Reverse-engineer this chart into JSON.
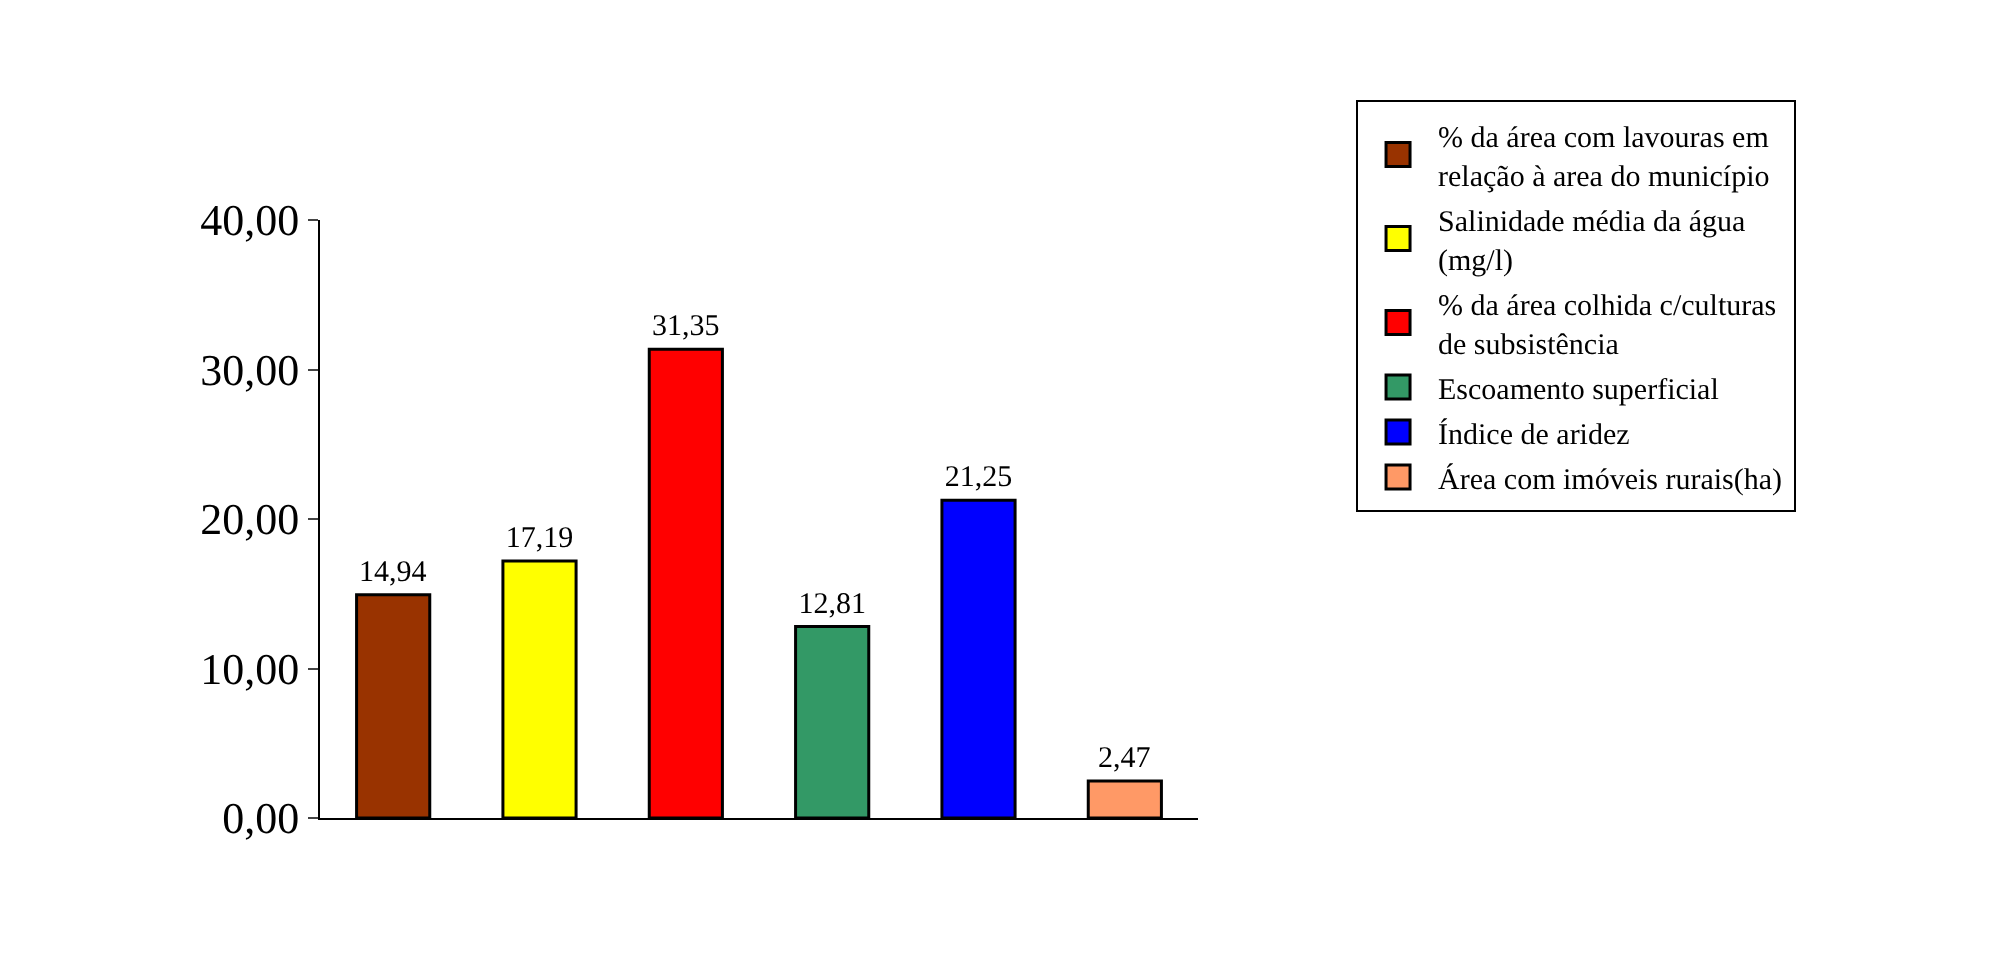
{
  "chart_data": {
    "type": "bar",
    "categories": [
      null,
      null,
      null,
      null,
      null,
      null
    ],
    "series": [
      {
        "name": "% da área com lavouras em relação à area do município",
        "color": "#993300",
        "values": [
          14.94,
          null,
          null,
          null,
          null,
          null
        ],
        "value_labels": [
          "14,94",
          null,
          null,
          null,
          null,
          null
        ]
      },
      {
        "name": "Salinidade média da água (mg/l)",
        "color": "#ffff00",
        "values": [
          null,
          17.19,
          null,
          null,
          null,
          null
        ],
        "value_labels": [
          null,
          "17,19",
          null,
          null,
          null,
          null
        ]
      },
      {
        "name": "% da área colhida c/culturas de subsistência",
        "color": "#ff0000",
        "values": [
          null,
          null,
          31.35,
          null,
          null,
          null
        ],
        "value_labels": [
          null,
          null,
          "31,35",
          null,
          null,
          null
        ]
      },
      {
        "name": "Escoamento superficial",
        "color": "#339966",
        "values": [
          null,
          null,
          null,
          12.81,
          null,
          null
        ],
        "value_labels": [
          null,
          null,
          null,
          "12,81",
          null,
          null
        ]
      },
      {
        "name": "Índice de aridez",
        "color": "#0000ff",
        "values": [
          null,
          null,
          null,
          null,
          21.25,
          null
        ],
        "value_labels": [
          null,
          null,
          null,
          null,
          "21,25",
          null
        ]
      },
      {
        "name": "Área com imóveis rurais(ha)",
        "color": "#ff9966",
        "values": [
          null,
          null,
          null,
          null,
          null,
          2.47
        ],
        "value_labels": [
          null,
          null,
          null,
          null,
          null,
          "2,47"
        ]
      }
    ],
    "ylim": [
      0,
      40
    ],
    "yticks": [
      {
        "value": 0,
        "label": "0,00"
      },
      {
        "value": 10,
        "label": "10,00"
      },
      {
        "value": 20,
        "label": "20,00"
      },
      {
        "value": 30,
        "label": "30,00"
      },
      {
        "value": 40,
        "label": "40,00"
      }
    ],
    "legend": "right"
  }
}
